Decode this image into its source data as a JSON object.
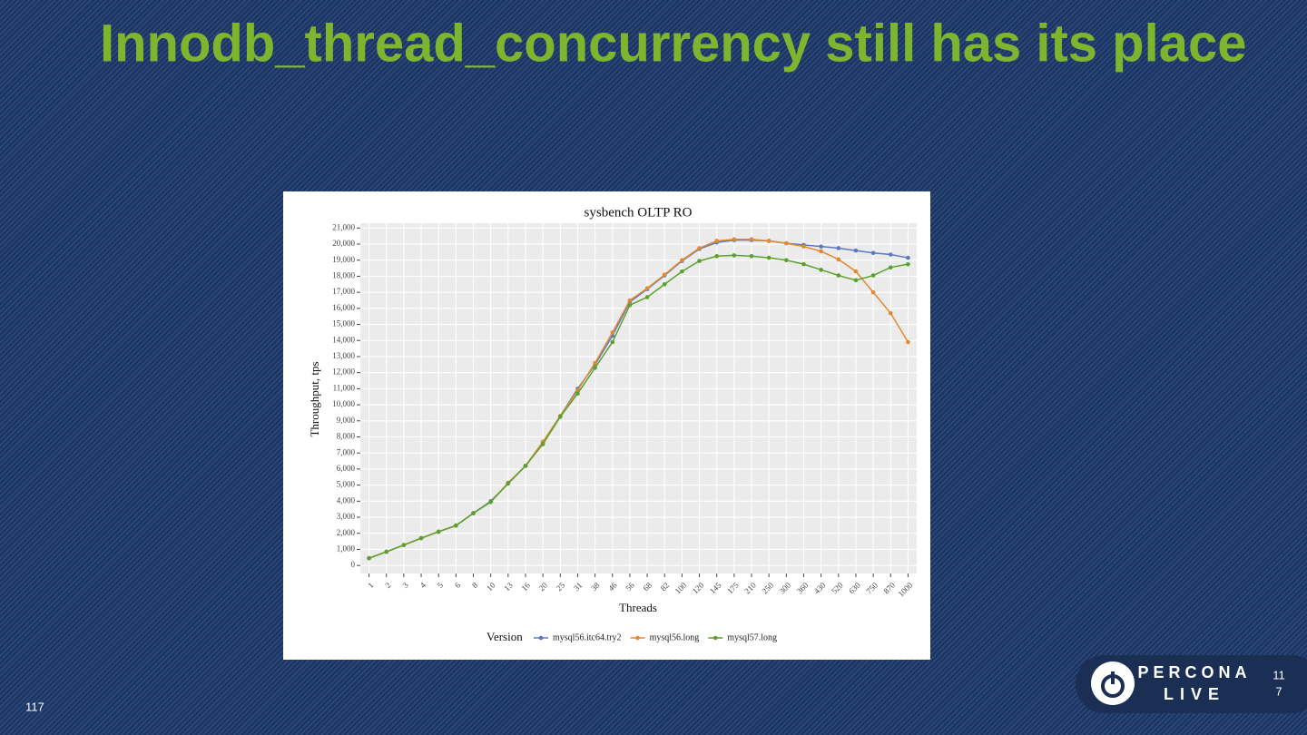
{
  "slide": {
    "title": "Innodb_thread_concurrency still has its place",
    "slide_number": "117",
    "logo_top": "PERCONA",
    "logo_bottom": "LIVE",
    "badge_number": [
      "11",
      "7"
    ]
  },
  "chart_data": {
    "type": "line",
    "title": "sysbench OLTP RO",
    "x_label": "Threads",
    "y_label": "Throughput, tps",
    "legend_title": "Version",
    "legend": "bottom",
    "grid": true,
    "categories": [
      "1",
      "2",
      "3",
      "4",
      "5",
      "6",
      "8",
      "10",
      "13",
      "16",
      "20",
      "25",
      "31",
      "38",
      "46",
      "56",
      "68",
      "82",
      "100",
      "120",
      "145",
      "175",
      "210",
      "250",
      "300",
      "360",
      "430",
      "520",
      "630",
      "750",
      "870",
      "1000"
    ],
    "ylim": [
      -500,
      21300
    ],
    "yticks": [
      0,
      {
        "value": 1000,
        "label": "1,000"
      },
      {
        "value": 2000,
        "label": "2,000"
      },
      {
        "value": 3000,
        "label": "3,000"
      },
      {
        "value": 4000,
        "label": "4,000"
      },
      {
        "value": 5000,
        "label": "5,000"
      },
      {
        "value": 6000,
        "label": "6,000"
      },
      {
        "value": 7000,
        "label": "7,000"
      },
      {
        "value": 8000,
        "label": "8,000"
      },
      {
        "value": 9000,
        "label": "9,000"
      },
      {
        "value": 10000,
        "label": "10,000"
      },
      {
        "value": 11000,
        "label": "11,000"
      },
      {
        "value": 12000,
        "label": "12,000"
      },
      {
        "value": 13000,
        "label": "13,000"
      },
      {
        "value": 14000,
        "label": "14,000"
      },
      {
        "value": 15000,
        "label": "15,000"
      },
      {
        "value": 16000,
        "label": "16,000"
      },
      {
        "value": 17000,
        "label": "17,000"
      },
      {
        "value": 18000,
        "label": "18,000"
      },
      {
        "value": 19000,
        "label": "19,000"
      },
      {
        "value": 20000,
        "label": "20,000"
      },
      {
        "value": 21000,
        "label": "21,000"
      }
    ],
    "series": [
      {
        "name": "mysql56.itc64.try2",
        "color": "#5b78c2",
        "values": [
          450,
          850,
          1270,
          1700,
          2100,
          2480,
          3250,
          4000,
          5100,
          6200,
          7650,
          9300,
          11000,
          12500,
          14300,
          16400,
          17200,
          18050,
          18950,
          19700,
          20100,
          20250,
          20250,
          20200,
          20050,
          19950,
          19850,
          19750,
          19600,
          19450,
          19350,
          19150
        ]
      },
      {
        "name": "mysql56.long",
        "color": "#e28a32",
        "values": [
          450,
          850,
          1270,
          1700,
          2100,
          2480,
          3250,
          3950,
          5150,
          6200,
          7700,
          9300,
          10900,
          12600,
          14500,
          16500,
          17250,
          18100,
          19000,
          19750,
          20200,
          20300,
          20300,
          20200,
          20050,
          19850,
          19550,
          19050,
          18300,
          17000,
          15700,
          13900
        ]
      },
      {
        "name": "mysql57.long",
        "color": "#5aa22e",
        "values": [
          450,
          850,
          1270,
          1700,
          2100,
          2480,
          3250,
          3950,
          5100,
          6200,
          7550,
          9250,
          10700,
          12300,
          13900,
          16200,
          16700,
          17500,
          18300,
          18950,
          19250,
          19300,
          19250,
          19150,
          19000,
          18750,
          18400,
          18050,
          17750,
          18050,
          18550,
          18750
        ]
      }
    ]
  }
}
